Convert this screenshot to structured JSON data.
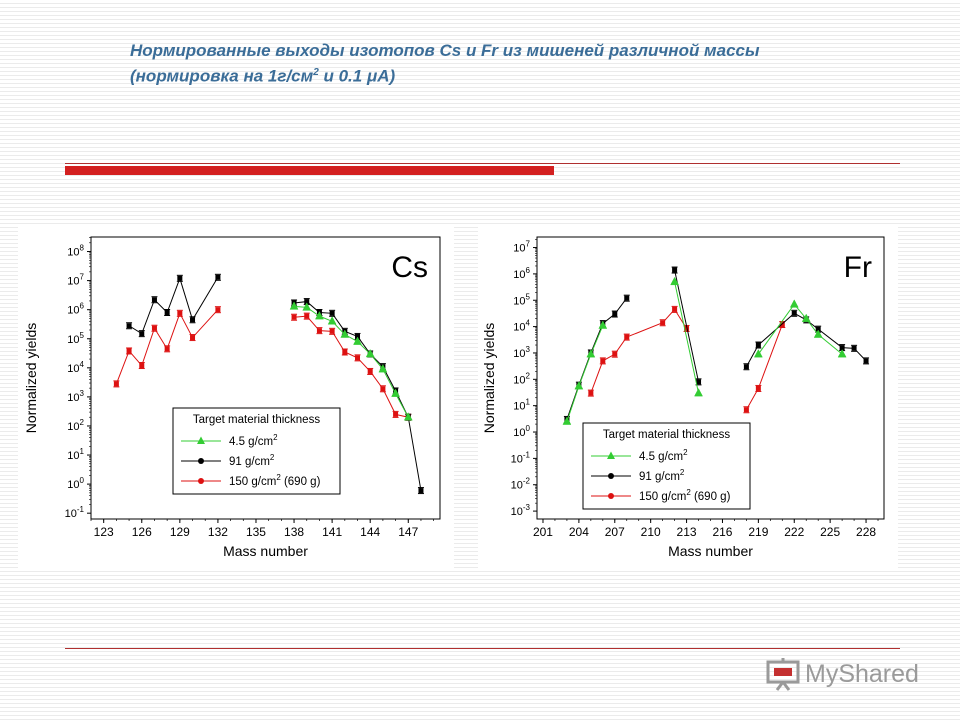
{
  "slide": {
    "title_line1": "Нормированные выходы изотопов Cs и Fr из мишеней различной массы",
    "title_line2_prefix": "(нормировка на 1г/см",
    "title_line2_sup": "2",
    "title_line2_suffix": " и 0.1 μА)",
    "logo_text": "MyShared"
  },
  "chart_data": [
    {
      "type": "scatter",
      "element_label": "Cs",
      "xlabel": "Mass number",
      "ylabel": "Normalized yields",
      "xlim": [
        122,
        149.5
      ],
      "ylim_log10": [
        -1.2,
        8.5
      ],
      "y_scale": "log",
      "x_ticks": [
        123,
        126,
        129,
        132,
        135,
        138,
        141,
        144,
        147
      ],
      "y_tick_exponents": [
        -1,
        0,
        1,
        2,
        3,
        4,
        5,
        6,
        7,
        8
      ],
      "legend_title": "Target material thickness",
      "legend_position": "bottom-center",
      "series": [
        {
          "name": "4.5 g/cm",
          "name_sup": "2",
          "color": "#33cc33",
          "marker": "triangle",
          "x": [
            138,
            139,
            140,
            141,
            142,
            143,
            144,
            145,
            146,
            147
          ],
          "y": [
            1300000,
            1200000,
            600000,
            400000,
            140000,
            80000,
            30000,
            9000,
            1300,
            200
          ]
        },
        {
          "name": "91 g/cm",
          "name_sup": "2",
          "color": "#000000",
          "marker": "circle",
          "x": [
            125,
            126,
            127,
            128,
            129,
            130,
            132,
            138,
            139,
            140,
            141,
            142,
            143,
            144,
            145,
            146,
            147,
            148
          ],
          "y": [
            280000,
            150000,
            2200000,
            800000,
            12000000,
            450000,
            13000000,
            1700000,
            1900000,
            800000,
            750000,
            180000,
            120000,
            30000,
            11000,
            1600,
            200,
            0.6
          ]
        },
        {
          "name": "150 g/cm",
          "name_sup": "2",
          "name_suffix": " (690 g)",
          "color": "#dd1111",
          "marker": "circle",
          "x": [
            124,
            125,
            126,
            127,
            128,
            129,
            130,
            132,
            138,
            139,
            140,
            141,
            142,
            143,
            144,
            145,
            146,
            147
          ],
          "y": [
            2800,
            38000,
            12000,
            230000,
            45000,
            750000,
            110000,
            1000000,
            550000,
            600000,
            190000,
            180000,
            35000,
            22000,
            7500,
            1900,
            250,
            200
          ]
        }
      ]
    },
    {
      "type": "scatter",
      "element_label": "Fr",
      "xlabel": "Mass number",
      "ylabel": "Normalized yields",
      "xlim": [
        200.5,
        229.5
      ],
      "ylim_log10": [
        -3.3,
        7.4
      ],
      "y_scale": "log",
      "x_ticks": [
        201,
        204,
        207,
        210,
        213,
        216,
        219,
        222,
        225,
        228
      ],
      "y_tick_exponents": [
        -3,
        -2,
        -1,
        0,
        1,
        2,
        3,
        4,
        5,
        6,
        7
      ],
      "legend_title": "Target material thickness",
      "legend_position": "bottom-center",
      "series": [
        {
          "name": "4.5 g/cm",
          "name_sup": "2",
          "color": "#33cc33",
          "marker": "triangle",
          "x": [
            203,
            204,
            205,
            206,
            212,
            214,
            219,
            222,
            223,
            224,
            226
          ],
          "y": [
            2.5,
            55,
            900,
            11000,
            500000,
            30,
            900,
            70000,
            20000,
            5000,
            900
          ]
        },
        {
          "name": "91 g/cm",
          "name_sup": "2",
          "color": "#000000",
          "marker": "circle",
          "x": [
            203,
            204,
            205,
            206,
            207,
            208,
            212,
            214,
            218,
            219,
            222,
            223,
            224,
            226,
            227,
            228
          ],
          "y": [
            3,
            60,
            1000,
            13000,
            30000,
            120000,
            1400000,
            80,
            300,
            2000,
            32000,
            18000,
            8000,
            1600,
            1500,
            500
          ]
        },
        {
          "name": "150 g/cm",
          "name_sup": "2",
          "name_suffix": " (690 g)",
          "color": "#dd1111",
          "marker": "circle",
          "x": [
            205,
            206,
            207,
            208,
            211,
            212,
            213,
            218,
            219,
            221
          ],
          "y": [
            30,
            500,
            900,
            4000,
            14000,
            45000,
            8500,
            7,
            45,
            12000
          ]
        }
      ]
    }
  ]
}
